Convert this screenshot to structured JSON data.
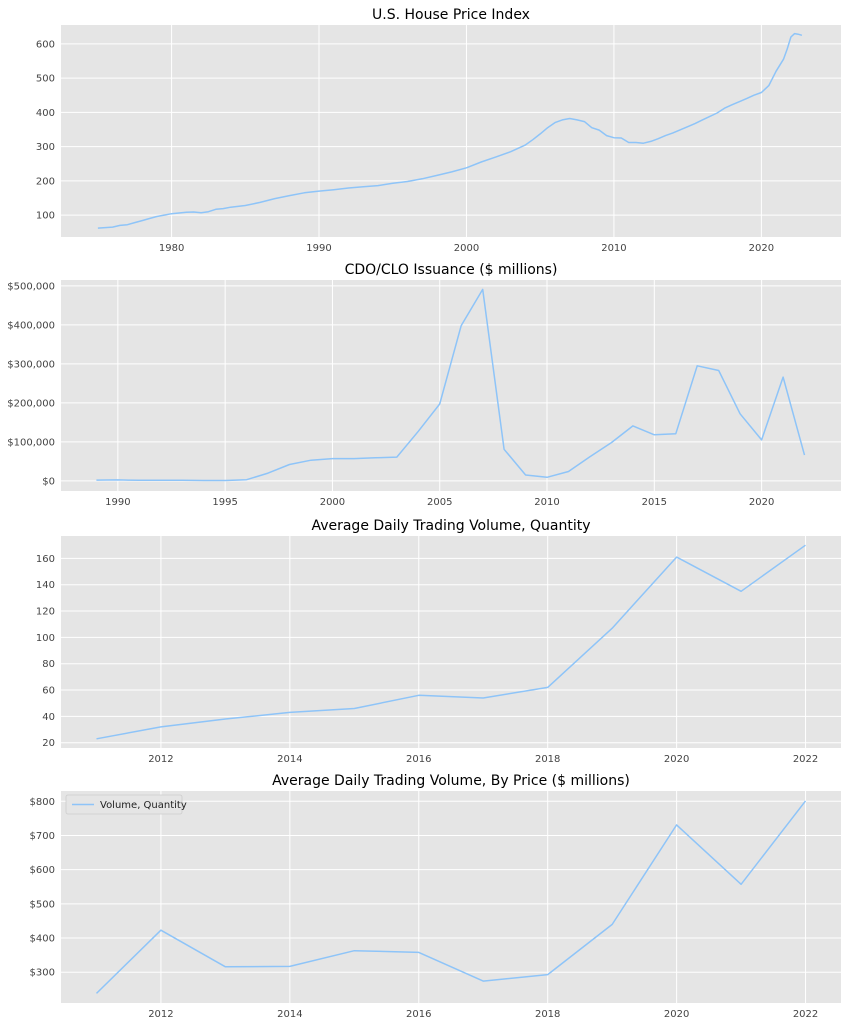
{
  "style": {
    "plot_bg": "#e5e5e5",
    "grid": "#ffffff",
    "line": "#8ec4f8"
  },
  "chart_data": [
    {
      "type": "line",
      "title": "U.S. House Price Index",
      "xlim": [
        1972.5,
        2025.4
      ],
      "ylim": [
        36,
        655
      ],
      "xticks": [
        1980,
        1990,
        2000,
        2010,
        2020
      ],
      "xtick_labels": [
        "1980",
        "1990",
        "2000",
        "2010",
        "2020"
      ],
      "yticks": [
        100,
        200,
        300,
        400,
        500,
        600
      ],
      "ytick_labels": [
        "100",
        "200",
        "300",
        "400",
        "500",
        "600"
      ],
      "grid": true,
      "series": [
        {
          "x": [
            1975,
            1976,
            1976.5,
            1977,
            1977.5,
            1978,
            1978.5,
            1979,
            1979.5,
            1980,
            1980.5,
            1981,
            1981.5,
            1982,
            1982.5,
            1983,
            1983.5,
            1984,
            1985,
            1986,
            1987,
            1988,
            1989,
            1990,
            1991,
            1992,
            1993,
            1994,
            1995,
            1996,
            1997,
            1998,
            1999,
            2000,
            2001,
            2002,
            2003,
            2004,
            2004.5,
            2005,
            2005.5,
            2006,
            2006.5,
            2007,
            2007.5,
            2008,
            2008.5,
            2009,
            2009.5,
            2010,
            2010.5,
            2011,
            2011.5,
            2012,
            2012.5,
            2013,
            2013.5,
            2014,
            2014.5,
            2015,
            2015.5,
            2016,
            2016.5,
            2017,
            2017.5,
            2018,
            2018.5,
            2019,
            2019.5,
            2020,
            2020.5,
            2021,
            2021.5,
            2021.75,
            2022,
            2022.25,
            2022.5,
            2022.75
          ],
          "y": [
            62,
            65,
            70,
            72,
            78,
            84,
            90,
            96,
            100,
            104,
            106,
            108,
            109,
            107,
            110,
            117,
            119,
            123,
            128,
            137,
            148,
            157,
            165,
            170,
            174,
            179,
            183,
            186,
            193,
            198,
            206,
            216,
            226,
            238,
            255,
            270,
            285,
            305,
            320,
            337,
            355,
            370,
            378,
            382,
            378,
            373,
            355,
            348,
            332,
            326,
            325,
            312,
            312,
            310,
            315,
            323,
            332,
            340,
            349,
            358,
            367,
            378,
            388,
            398,
            412,
            422,
            431,
            440,
            450,
            458,
            478,
            520,
            555,
            585,
            620,
            630,
            628,
            625
          ]
        }
      ]
    },
    {
      "type": "line",
      "title": "CDO/CLO Issuance ($ millions)",
      "xlim": [
        1987.35,
        2023.7
      ],
      "ylim": [
        -26000,
        515000
      ],
      "xticks": [
        1990,
        1995,
        2000,
        2005,
        2010,
        2015,
        2020
      ],
      "xtick_labels": [
        "1990",
        "1995",
        "2000",
        "2005",
        "2010",
        "2015",
        "2020"
      ],
      "yticks": [
        0,
        100000,
        200000,
        300000,
        400000,
        500000
      ],
      "ytick_labels": [
        "$0",
        "$100,000",
        "$200,000",
        "$300,000",
        "$400,000",
        "$500,000"
      ],
      "grid": true,
      "series": [
        {
          "x": [
            1989,
            1990,
            1991,
            1992,
            1993,
            1994,
            1995,
            1996,
            1997,
            1998,
            1999,
            2000,
            2001,
            2002,
            2003,
            2004,
            2005,
            2006,
            2007,
            2008,
            2009,
            2010,
            2011,
            2012,
            2013,
            2014,
            2015,
            2016,
            2017,
            2018,
            2019,
            2020,
            2021,
            2022
          ],
          "y": [
            2000,
            2500,
            1500,
            1500,
            1500,
            1000,
            1000,
            3000,
            20000,
            42000,
            53000,
            57000,
            57000,
            59000,
            61000,
            127000,
            197000,
            398000,
            491000,
            81000,
            15000,
            9000,
            24000,
            62000,
            98000,
            141000,
            118000,
            121000,
            295000,
            283000,
            172000,
            105000,
            266000,
            66000
          ]
        }
      ]
    },
    {
      "type": "line",
      "title": "Average Daily Trading Volume, Quantity",
      "xlim": [
        2010.45,
        2022.55
      ],
      "ylim": [
        16,
        177
      ],
      "xticks": [
        2012,
        2014,
        2016,
        2018,
        2020,
        2022
      ],
      "xtick_labels": [
        "2012",
        "2014",
        "2016",
        "2018",
        "2020",
        "2022"
      ],
      "yticks": [
        20,
        40,
        60,
        80,
        100,
        120,
        140,
        160
      ],
      "ytick_labels": [
        "20",
        "40",
        "60",
        "80",
        "100",
        "120",
        "140",
        "160"
      ],
      "grid": true,
      "series": [
        {
          "x": [
            2011,
            2012,
            2013,
            2014,
            2015,
            2016,
            2017,
            2018,
            2019,
            2020,
            2021,
            2022
          ],
          "y": [
            23,
            32,
            38,
            43,
            46,
            56,
            54,
            62,
            107,
            161,
            135,
            170
          ]
        }
      ]
    },
    {
      "type": "line",
      "title": "Average Daily Trading Volume, By Price ($ millions)",
      "xlim": [
        2010.45,
        2022.55
      ],
      "ylim": [
        210,
        830
      ],
      "xticks": [
        2012,
        2014,
        2016,
        2018,
        2020,
        2022
      ],
      "xtick_labels": [
        "2012",
        "2014",
        "2016",
        "2018",
        "2020",
        "2022"
      ],
      "yticks": [
        300,
        400,
        500,
        600,
        700,
        800
      ],
      "ytick_labels": [
        "$300",
        "$400",
        "$500",
        "$600",
        "$700",
        "$800"
      ],
      "grid": true,
      "legend": {
        "label": "Volume, Quantity",
        "placement": "upper-left"
      },
      "series": [
        {
          "name": "Volume, Quantity",
          "x": [
            2011,
            2012,
            2013,
            2014,
            2015,
            2016,
            2017,
            2018,
            2019,
            2020,
            2021,
            2022
          ],
          "y": [
            238,
            423,
            316,
            317,
            363,
            358,
            274,
            293,
            440,
            731,
            557,
            801
          ]
        }
      ]
    }
  ]
}
